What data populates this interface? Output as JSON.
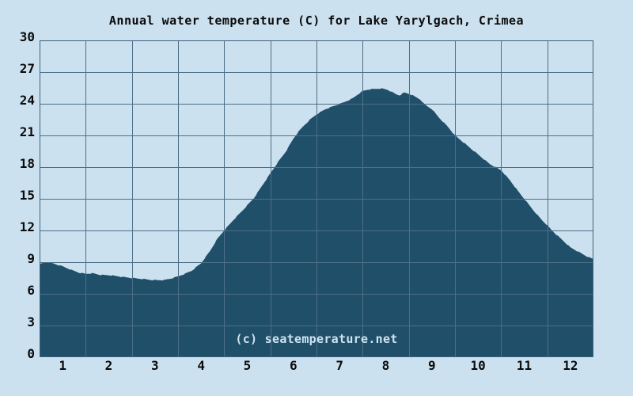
{
  "colors": {
    "background": "#cce1ef",
    "area_fill": "#204f6a",
    "gridline": "#4d6e87",
    "plot_border": "#3e5f7a",
    "text": "#0b0b0b",
    "watermark_text": "#cfe3ee"
  },
  "chart_data": {
    "type": "area",
    "title": "Annual water temperature (C) for Lake Yarylgach, Crimea",
    "watermark": "(c) seatemperature.net",
    "xlabel": "",
    "ylabel": "",
    "ylim": [
      0,
      30
    ],
    "xlim_months": [
      0,
      12
    ],
    "grid": true,
    "yticks": [
      0,
      3,
      6,
      9,
      12,
      15,
      18,
      21,
      24,
      27,
      30
    ],
    "xticks": [
      1,
      2,
      3,
      4,
      5,
      6,
      7,
      8,
      9,
      10,
      11,
      12
    ],
    "categories": [
      "1",
      "2",
      "3",
      "4",
      "5",
      "6",
      "7",
      "8",
      "9",
      "10",
      "11",
      "12"
    ],
    "monthly_mid_values": [
      8.6,
      7.75,
      7.3,
      8.9,
      14.4,
      20.7,
      24.0,
      25.4,
      23.4,
      19.2,
      15.0,
      10.4
    ],
    "curve": [
      [
        0.0,
        8.8
      ],
      [
        0.1,
        8.95
      ],
      [
        0.2,
        9.0
      ],
      [
        0.35,
        8.8
      ],
      [
        0.5,
        8.6
      ],
      [
        0.7,
        8.25
      ],
      [
        0.86,
        8.0
      ],
      [
        1.0,
        7.9
      ],
      [
        1.15,
        7.95
      ],
      [
        1.3,
        7.8
      ],
      [
        1.55,
        7.75
      ],
      [
        1.8,
        7.6
      ],
      [
        2.0,
        7.5
      ],
      [
        2.25,
        7.4
      ],
      [
        2.45,
        7.3
      ],
      [
        2.7,
        7.3
      ],
      [
        2.85,
        7.45
      ],
      [
        3.0,
        7.65
      ],
      [
        3.15,
        7.9
      ],
      [
        3.3,
        8.2
      ],
      [
        3.5,
        8.9
      ],
      [
        3.7,
        10.1
      ],
      [
        3.85,
        11.2
      ],
      [
        4.0,
        12.0
      ],
      [
        4.2,
        13.0
      ],
      [
        4.4,
        13.9
      ],
      [
        4.65,
        15.1
      ],
      [
        4.8,
        16.1
      ],
      [
        5.0,
        17.4
      ],
      [
        5.17,
        18.5
      ],
      [
        5.34,
        19.5
      ],
      [
        5.5,
        20.7
      ],
      [
        5.6,
        21.3
      ],
      [
        5.72,
        21.9
      ],
      [
        5.86,
        22.5
      ],
      [
        6.0,
        23.0
      ],
      [
        6.2,
        23.5
      ],
      [
        6.45,
        23.9
      ],
      [
        6.6,
        24.15
      ],
      [
        6.78,
        24.5
      ],
      [
        6.9,
        24.9
      ],
      [
        7.0,
        25.2
      ],
      [
        7.12,
        25.35
      ],
      [
        7.25,
        25.4
      ],
      [
        7.4,
        25.45
      ],
      [
        7.52,
        25.35
      ],
      [
        7.62,
        25.15
      ],
      [
        7.72,
        24.9
      ],
      [
        7.8,
        24.8
      ],
      [
        7.9,
        25.05
      ],
      [
        8.0,
        24.95
      ],
      [
        8.1,
        24.75
      ],
      [
        8.25,
        24.4
      ],
      [
        8.35,
        23.9
      ],
      [
        8.5,
        23.5
      ],
      [
        8.65,
        22.7
      ],
      [
        8.85,
        21.8
      ],
      [
        9.0,
        21.0
      ],
      [
        9.25,
        20.1
      ],
      [
        9.5,
        19.2
      ],
      [
        9.75,
        18.3
      ],
      [
        10.0,
        17.7
      ],
      [
        10.2,
        16.7
      ],
      [
        10.37,
        15.7
      ],
      [
        10.5,
        15.0
      ],
      [
        10.7,
        13.9
      ],
      [
        10.88,
        13.0
      ],
      [
        11.0,
        12.5
      ],
      [
        11.1,
        12.0
      ],
      [
        11.3,
        11.2
      ],
      [
        11.5,
        10.4
      ],
      [
        11.75,
        9.8
      ],
      [
        11.9,
        9.45
      ],
      [
        12.0,
        9.3
      ]
    ]
  }
}
